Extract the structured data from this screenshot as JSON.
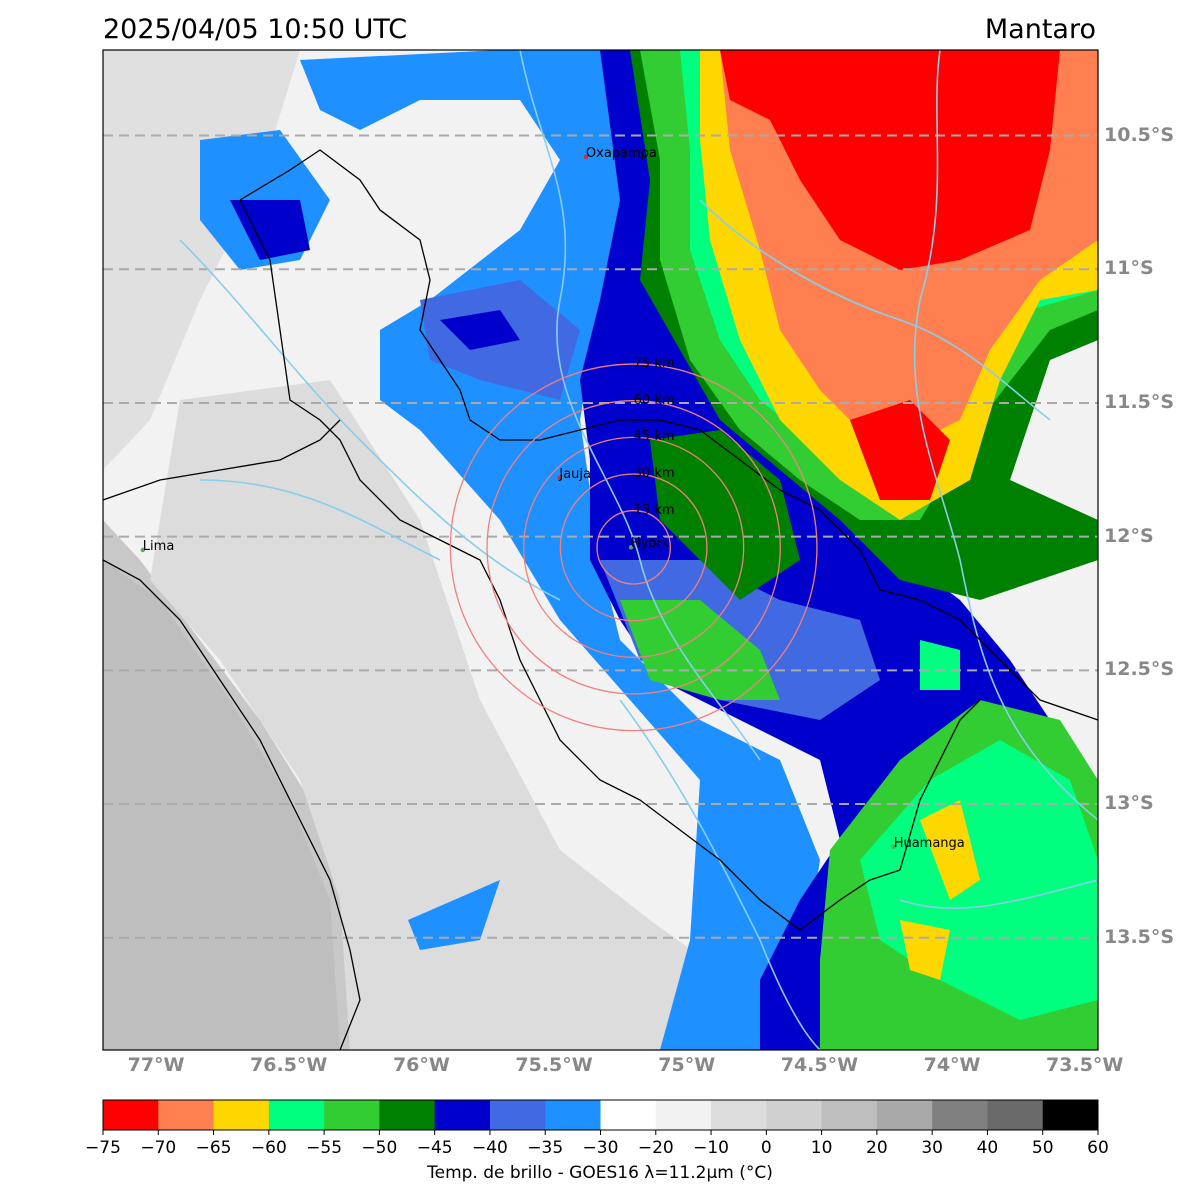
{
  "header": {
    "timestamp": "2025/04/05 10:50 UTC",
    "region": "Mantaro"
  },
  "axes": {
    "lat_labels": [
      "10.5°S",
      "11°S",
      "11.5°S",
      "12°S",
      "12.5°S",
      "13°S",
      "13.5°S"
    ],
    "lat_values": [
      -10.5,
      -11.0,
      -11.5,
      -12.0,
      -12.5,
      -13.0,
      -13.5
    ],
    "lon_labels": [
      "77°W",
      "76.5°W",
      "76°W",
      "75.5°W",
      "75°W",
      "74.5°W",
      "74°W",
      "73.5°W"
    ],
    "lon_values": [
      -77.0,
      -76.5,
      -76.0,
      -75.5,
      -75.0,
      -74.5,
      -74.0,
      -73.5
    ],
    "lon_range": [
      -77.2,
      -73.45
    ],
    "lat_range": [
      -13.92,
      -10.18
    ]
  },
  "places": [
    {
      "name": "Oxapampa",
      "lon": -75.38,
      "lat": -10.58,
      "dot": "#cc3333"
    },
    {
      "name": "Jauja",
      "lon": -75.48,
      "lat": -11.78,
      "dot": "#cc3333"
    },
    {
      "name": "Hyork",
      "lon": -75.21,
      "lat": -12.04,
      "dot": "#55aa55"
    },
    {
      "name": "Lima",
      "lon": -77.05,
      "lat": -12.05,
      "dot": "#55aa55"
    },
    {
      "name": "Huamanga",
      "lon": -74.22,
      "lat": -13.16,
      "dot": "#55aa55"
    }
  ],
  "rings": {
    "center": {
      "lon": -75.2,
      "lat": -12.04
    },
    "radii_km": [
      15,
      30,
      45,
      60,
      75
    ],
    "labels": [
      "15 km",
      "30 km",
      "45 km",
      "60 km",
      "75 km"
    ],
    "color": "#f08080"
  },
  "colorbar": {
    "ticks": [
      "−75",
      "−70",
      "−65",
      "−60",
      "−55",
      "−50",
      "−45",
      "−40",
      "−35",
      "−30",
      "−20",
      "−10",
      "0",
      "10",
      "20",
      "30",
      "40",
      "50",
      "60"
    ],
    "colors": [
      "#ff0000",
      "#ff7f50",
      "#ffd700",
      "#00ff7f",
      "#32cd32",
      "#008000",
      "#0000cd",
      "#4169e1",
      "#1e90ff",
      "#ffffff",
      "#f2f2f2",
      "#dcdcdc",
      "#d0d0d0",
      "#bebebe",
      "#a9a9a9",
      "#808080",
      "#696969",
      "#000000"
    ],
    "label": "Temp. de brillo - GOES16 λ=11.2μm (°C)"
  },
  "colors": {
    "gridline": "#aaaaaa",
    "river": "#87ceeb",
    "border": "#000000"
  }
}
